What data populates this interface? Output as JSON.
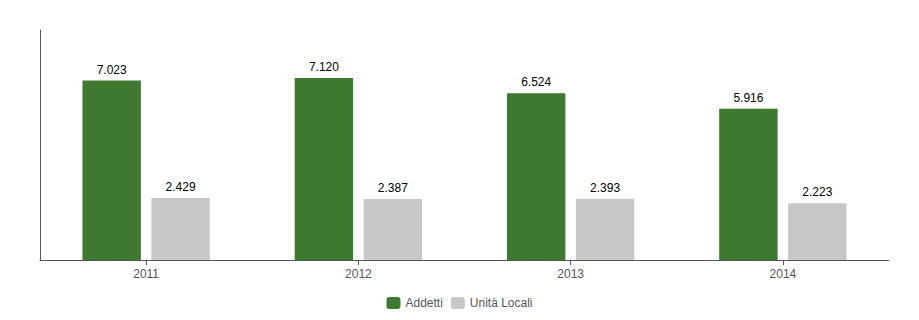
{
  "chart_data": {
    "type": "bar",
    "categories": [
      "2011",
      "2012",
      "2013",
      "2014"
    ],
    "series": [
      {
        "name": "Addetti",
        "color": "#3d7a30",
        "values": [
          7023,
          7120,
          6524,
          5916
        ],
        "value_labels": [
          "7.023",
          "7.120",
          "6.524",
          "5.916"
        ]
      },
      {
        "name": "Unità Locali",
        "color": "#c8c8c8",
        "values": [
          2429,
          2387,
          2393,
          2223
        ],
        "value_labels": [
          "2.429",
          "2.387",
          "2.393",
          "2.223"
        ]
      }
    ],
    "ylim": [
      0,
      9000
    ],
    "grid": false,
    "legend": "bottom",
    "data_labels": true,
    "tick_labels": "x"
  }
}
